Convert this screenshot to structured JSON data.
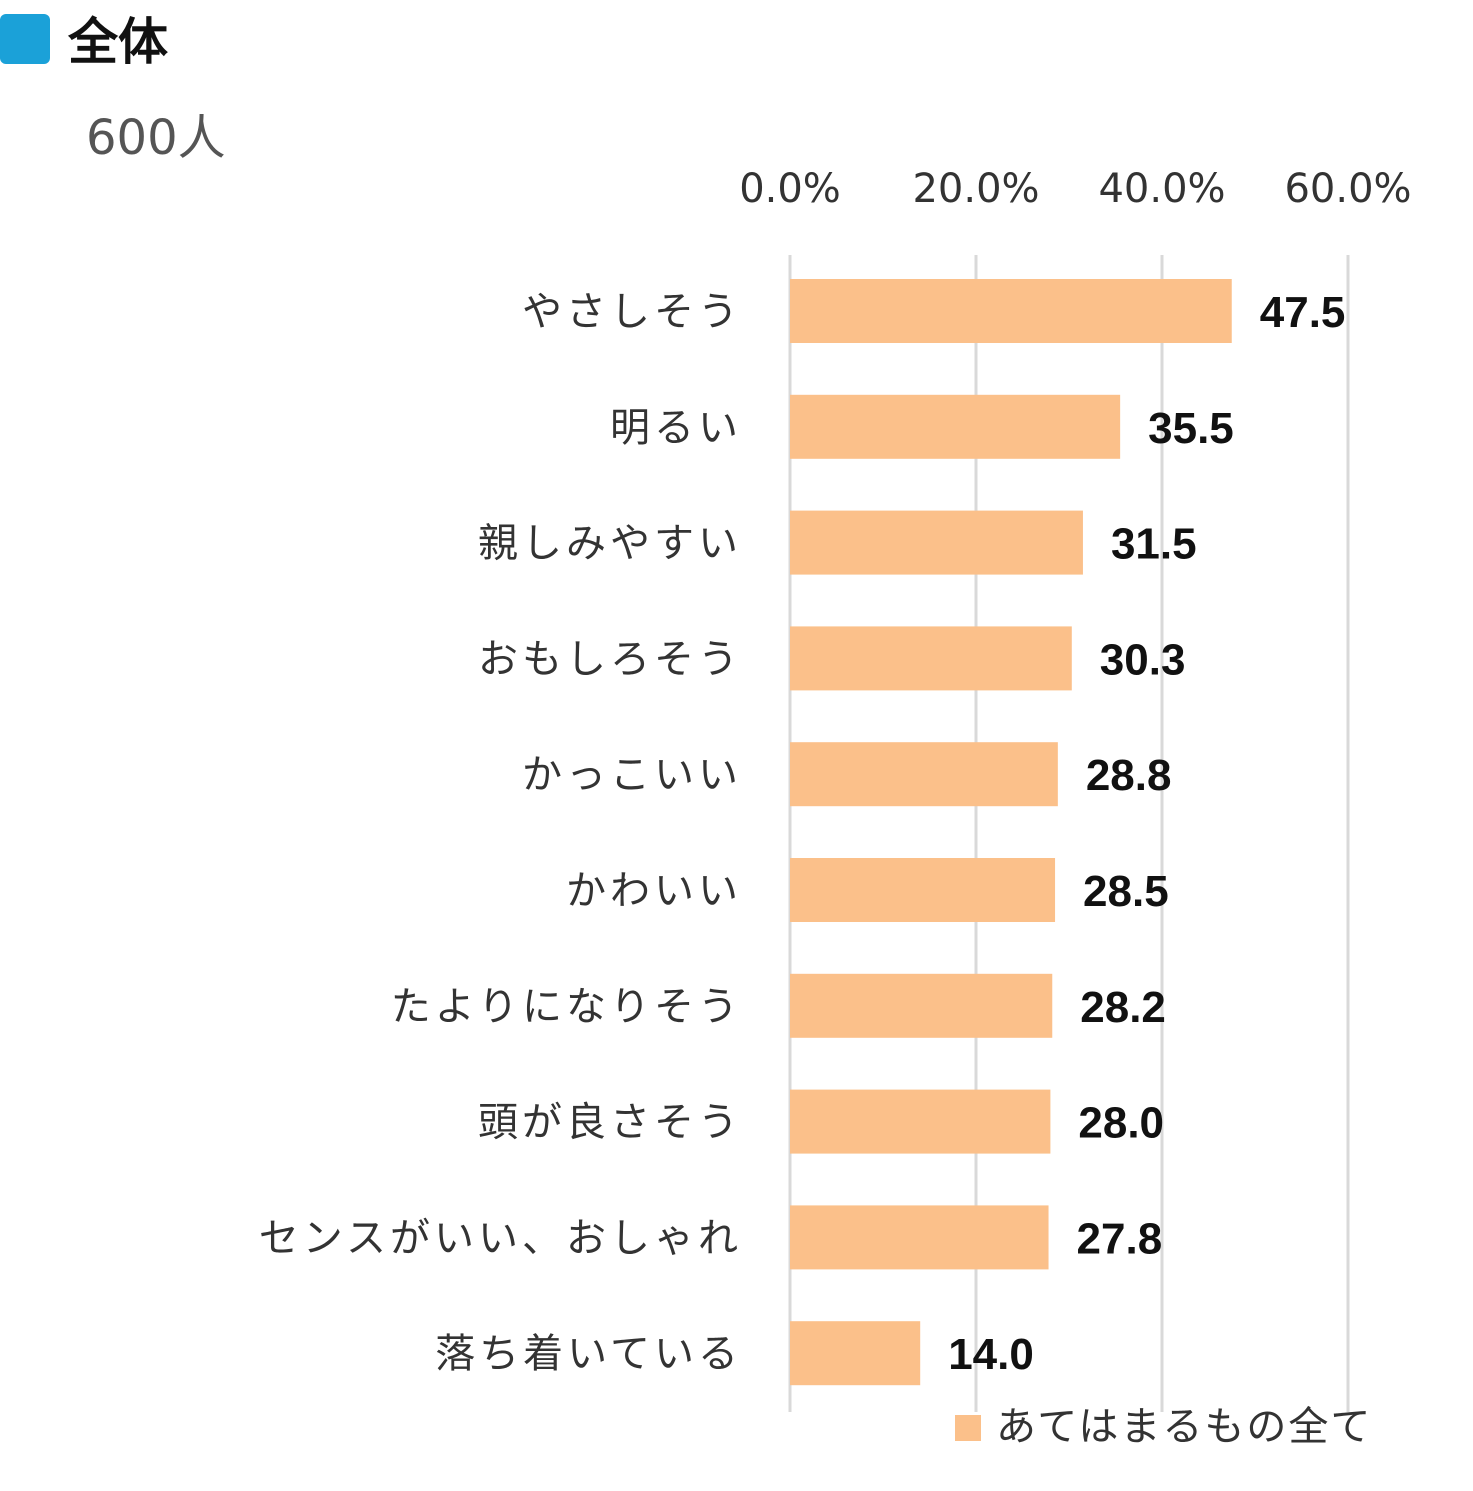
{
  "header": {
    "title": "全体",
    "subtitle": "600人",
    "marker_color": "#1ba1d8"
  },
  "chart_data": {
    "type": "bar",
    "orientation": "horizontal",
    "categories": [
      "やさしそう",
      "明るい",
      "親しみやすい",
      "おもしろそう",
      "かっこいい",
      "かわいい",
      "たよりになりそう",
      "頭が良さそう",
      "センスがいい、おしゃれ",
      "落ち着いている"
    ],
    "series": [
      {
        "name": "あてはまるもの全て",
        "color": "#fbc08a",
        "values": [
          47.5,
          35.5,
          31.5,
          30.3,
          28.8,
          28.5,
          28.2,
          28.0,
          27.8,
          14.0
        ],
        "labels": [
          "47.5",
          "35.5",
          "31.5",
          "30.3",
          "28.8",
          "28.5",
          "28.2",
          "28.0",
          "27.8",
          "14.0"
        ]
      }
    ],
    "x_ticks": [
      0,
      20,
      40,
      60
    ],
    "x_tick_labels": [
      "0.0%",
      "20.0%",
      "40.0%",
      "60.0%"
    ],
    "xlim": [
      0,
      60
    ],
    "x_axis_position": "top",
    "grid": true,
    "gridline_color": "#d9d9d9",
    "legend_position": "bottom-right",
    "title": "",
    "xlabel": "",
    "ylabel": ""
  }
}
